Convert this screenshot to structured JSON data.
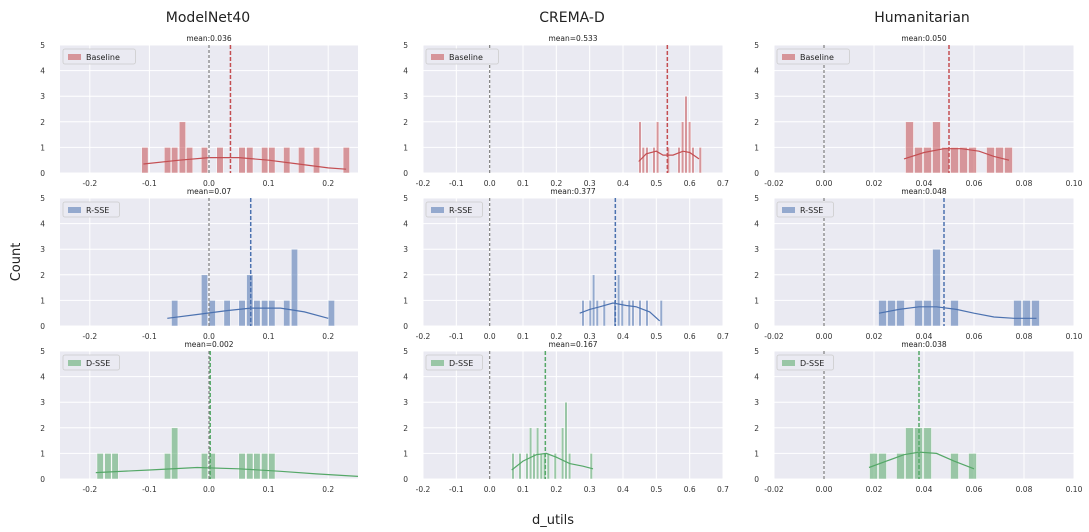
{
  "figure": {
    "ylabel": "Count",
    "xlabel": "d_utils",
    "column_titles": [
      "ModelNet40",
      "CREMA-D",
      "Humanitarian"
    ]
  },
  "chart_data": [
    {
      "type": "histogram",
      "dataset": "ModelNet40",
      "series": "Baseline",
      "row": 0,
      "col": 0,
      "color": "#c44e52",
      "mean_label": "mean:0.036",
      "mean": 0.036,
      "xlim": [
        -0.25,
        0.25
      ],
      "ylim": [
        0,
        5
      ],
      "xticks": [
        "-0.2",
        "-0.1",
        "0.0",
        "0.1",
        "0.2"
      ],
      "xtick_values": [
        -0.2,
        -0.1,
        0,
        0.1,
        0.2
      ],
      "yticks": [
        "0",
        "1",
        "2",
        "3",
        "4",
        "5"
      ],
      "bin_width": 0.0125,
      "bars": [
        [
          -0.113,
          1
        ],
        [
          -0.075,
          1
        ],
        [
          -0.063,
          1
        ],
        [
          -0.05,
          2
        ],
        [
          -0.038,
          1
        ],
        [
          -0.013,
          1
        ],
        [
          0.013,
          1
        ],
        [
          0.05,
          1
        ],
        [
          0.063,
          1
        ],
        [
          0.088,
          1
        ],
        [
          0.1,
          1
        ],
        [
          0.125,
          1
        ],
        [
          0.15,
          1
        ],
        [
          0.175,
          1
        ],
        [
          0.225,
          1
        ]
      ],
      "kde": [
        [
          -0.11,
          0.35
        ],
        [
          -0.05,
          0.5
        ],
        [
          0.0,
          0.6
        ],
        [
          0.05,
          0.6
        ],
        [
          0.1,
          0.5
        ],
        [
          0.15,
          0.35
        ],
        [
          0.2,
          0.2
        ],
        [
          0.23,
          0.15
        ]
      ]
    },
    {
      "type": "histogram",
      "dataset": "CREMA-D",
      "series": "Baseline",
      "row": 0,
      "col": 1,
      "color": "#c44e52",
      "mean_label": "mean=0.533",
      "mean": 0.533,
      "xlim": [
        -0.2,
        0.7
      ],
      "ylim": [
        0,
        5
      ],
      "xticks": [
        "-0.2",
        "-0.1",
        "0.0",
        "0.1",
        "0.2",
        "0.3",
        "0.4",
        "0.5",
        "0.6",
        "0.7"
      ],
      "xtick_values": [
        -0.2,
        -0.1,
        0,
        0.1,
        0.2,
        0.3,
        0.4,
        0.5,
        0.6,
        0.7
      ],
      "yticks": [
        "0",
        "1",
        "2",
        "3",
        "4",
        "5"
      ],
      "bin_width": 0.0107,
      "bars": [
        [
          0.447,
          2
        ],
        [
          0.457,
          1
        ],
        [
          0.468,
          1
        ],
        [
          0.489,
          1
        ],
        [
          0.5,
          2
        ],
        [
          0.532,
          1
        ],
        [
          0.564,
          1
        ],
        [
          0.575,
          2
        ],
        [
          0.585,
          3
        ],
        [
          0.596,
          2
        ],
        [
          0.606,
          1
        ],
        [
          0.628,
          1
        ]
      ],
      "kde": [
        [
          0.447,
          0.45
        ],
        [
          0.47,
          0.75
        ],
        [
          0.5,
          0.85
        ],
        [
          0.52,
          0.7
        ],
        [
          0.55,
          0.7
        ],
        [
          0.58,
          0.85
        ],
        [
          0.6,
          0.8
        ],
        [
          0.628,
          0.55
        ]
      ]
    },
    {
      "type": "histogram",
      "dataset": "Humanitarian",
      "series": "Baseline",
      "row": 0,
      "col": 2,
      "color": "#c44e52",
      "mean_label": "mean:0.050",
      "mean": 0.05,
      "xlim": [
        -0.02,
        0.1
      ],
      "ylim": [
        0,
        5
      ],
      "xticks": [
        "-0.02",
        "0.00",
        "0.02",
        "0.04",
        "0.06",
        "0.08",
        "0.10"
      ],
      "xtick_values": [
        -0.02,
        0,
        0.02,
        0.04,
        0.06,
        0.08,
        0.1
      ],
      "yticks": [
        "0",
        "1",
        "2",
        "3",
        "4",
        "5"
      ],
      "bin_width": 0.0036,
      "bars": [
        [
          0.0326,
          2
        ],
        [
          0.0362,
          1
        ],
        [
          0.0398,
          1
        ],
        [
          0.0434,
          2
        ],
        [
          0.047,
          1
        ],
        [
          0.0506,
          1
        ],
        [
          0.0542,
          1
        ],
        [
          0.0578,
          1
        ],
        [
          0.065,
          1
        ],
        [
          0.0686,
          1
        ],
        [
          0.0722,
          1
        ]
      ],
      "kde": [
        [
          0.032,
          0.55
        ],
        [
          0.04,
          0.8
        ],
        [
          0.048,
          0.95
        ],
        [
          0.055,
          0.95
        ],
        [
          0.062,
          0.85
        ],
        [
          0.068,
          0.65
        ],
        [
          0.074,
          0.5
        ]
      ]
    },
    {
      "type": "histogram",
      "dataset": "ModelNet40",
      "series": "R-SSE",
      "row": 1,
      "col": 0,
      "color": "#4c72b0",
      "mean_label": "mean=0.07",
      "mean": 0.07,
      "xlim": [
        -0.25,
        0.25
      ],
      "ylim": [
        0,
        5
      ],
      "xticks": [
        "-0.2",
        "-0.1",
        "0.0",
        "0.1",
        "0.2"
      ],
      "xtick_values": [
        -0.2,
        -0.1,
        0,
        0.1,
        0.2
      ],
      "yticks": [
        "0",
        "1",
        "2",
        "3",
        "4",
        "5"
      ],
      "bin_width": 0.0125,
      "bars": [
        [
          -0.063,
          1
        ],
        [
          -0.013,
          2
        ],
        [
          -0.0,
          1
        ],
        [
          0.025,
          1
        ],
        [
          0.05,
          1
        ],
        [
          0.063,
          2
        ],
        [
          0.075,
          1
        ],
        [
          0.088,
          1
        ],
        [
          0.1,
          1
        ],
        [
          0.125,
          1
        ],
        [
          0.138,
          3
        ],
        [
          0.2,
          1
        ]
      ],
      "kde": [
        [
          -0.07,
          0.3
        ],
        [
          -0.02,
          0.45
        ],
        [
          0.03,
          0.6
        ],
        [
          0.07,
          0.7
        ],
        [
          0.12,
          0.7
        ],
        [
          0.16,
          0.55
        ],
        [
          0.2,
          0.3
        ]
      ]
    },
    {
      "type": "histogram",
      "dataset": "CREMA-D",
      "series": "R-SSE",
      "row": 1,
      "col": 1,
      "color": "#4c72b0",
      "mean_label": "mean:0.377",
      "mean": 0.377,
      "xlim": [
        -0.2,
        0.7
      ],
      "ylim": [
        0,
        5
      ],
      "xticks": [
        "-0.2",
        "-0.1",
        "0.0",
        "0.1",
        "0.2",
        "0.3",
        "0.4",
        "0.5",
        "0.6",
        "0.7"
      ],
      "xtick_values": [
        -0.2,
        -0.1,
        0,
        0.1,
        0.2,
        0.3,
        0.4,
        0.5,
        0.6,
        0.7
      ],
      "yticks": [
        "0",
        "1",
        "2",
        "3",
        "4",
        "5"
      ],
      "bin_width": 0.0107,
      "bars": [
        [
          0.276,
          1
        ],
        [
          0.298,
          1
        ],
        [
          0.308,
          2
        ],
        [
          0.319,
          1
        ],
        [
          0.34,
          1
        ],
        [
          0.372,
          1
        ],
        [
          0.383,
          2
        ],
        [
          0.394,
          1
        ],
        [
          0.415,
          1
        ],
        [
          0.426,
          1
        ],
        [
          0.447,
          1
        ],
        [
          0.468,
          1
        ],
        [
          0.511,
          1
        ]
      ],
      "kde": [
        [
          0.27,
          0.5
        ],
        [
          0.3,
          0.65
        ],
        [
          0.33,
          0.75
        ],
        [
          0.37,
          0.9
        ],
        [
          0.41,
          0.8
        ],
        [
          0.44,
          0.75
        ],
        [
          0.48,
          0.55
        ],
        [
          0.51,
          0.2
        ]
      ]
    },
    {
      "type": "histogram",
      "dataset": "Humanitarian",
      "series": "R-SSE",
      "row": 1,
      "col": 2,
      "color": "#4c72b0",
      "mean_label": "mean:0.048",
      "mean": 0.048,
      "xlim": [
        -0.02,
        0.1
      ],
      "ylim": [
        0,
        5
      ],
      "xticks": [
        "-0.02",
        "0.00",
        "0.02",
        "0.04",
        "0.06",
        "0.08",
        "0.10"
      ],
      "xtick_values": [
        -0.02,
        0,
        0.02,
        0.04,
        0.06,
        0.08,
        0.1
      ],
      "yticks": [
        "0",
        "1",
        "2",
        "3",
        "4",
        "5"
      ],
      "bin_width": 0.0036,
      "bars": [
        [
          0.0218,
          1
        ],
        [
          0.0254,
          1
        ],
        [
          0.029,
          1
        ],
        [
          0.0362,
          1
        ],
        [
          0.0398,
          1
        ],
        [
          0.0434,
          3
        ],
        [
          0.0506,
          1
        ],
        [
          0.0758,
          1
        ],
        [
          0.0794,
          1
        ],
        [
          0.083,
          1
        ]
      ],
      "kde": [
        [
          0.022,
          0.5
        ],
        [
          0.03,
          0.65
        ],
        [
          0.038,
          0.75
        ],
        [
          0.045,
          0.75
        ],
        [
          0.053,
          0.65
        ],
        [
          0.06,
          0.5
        ],
        [
          0.068,
          0.35
        ],
        [
          0.076,
          0.3
        ],
        [
          0.085,
          0.3
        ]
      ]
    },
    {
      "type": "histogram",
      "dataset": "ModelNet40",
      "series": "D-SSE",
      "row": 2,
      "col": 0,
      "color": "#55a868",
      "mean_label": "mean=0.002",
      "mean": 0.002,
      "xlim": [
        -0.25,
        0.25
      ],
      "ylim": [
        0,
        5
      ],
      "xticks": [
        "-0.2",
        "-0.1",
        "0.0",
        "0.1",
        "0.2"
      ],
      "xtick_values": [
        -0.2,
        -0.1,
        0,
        0.1,
        0.2
      ],
      "yticks": [
        "0",
        "1",
        "2",
        "3",
        "4",
        "5"
      ],
      "bin_width": 0.0125,
      "bars": [
        [
          -0.188,
          1
        ],
        [
          -0.175,
          1
        ],
        [
          -0.163,
          1
        ],
        [
          -0.075,
          1
        ],
        [
          -0.063,
          2
        ],
        [
          -0.013,
          1
        ],
        [
          0.0,
          1
        ],
        [
          0.05,
          1
        ],
        [
          0.063,
          1
        ],
        [
          0.075,
          1
        ],
        [
          0.088,
          1
        ],
        [
          0.1,
          1
        ]
      ],
      "kde": [
        [
          -0.19,
          0.25
        ],
        [
          -0.1,
          0.35
        ],
        [
          -0.02,
          0.45
        ],
        [
          0.05,
          0.4
        ],
        [
          0.12,
          0.3
        ],
        [
          0.18,
          0.2
        ],
        [
          0.25,
          0.1
        ]
      ]
    },
    {
      "type": "histogram",
      "dataset": "CREMA-D",
      "series": "D-SSE",
      "row": 2,
      "col": 1,
      "color": "#55a868",
      "mean_label": "mean=0.167",
      "mean": 0.167,
      "xlim": [
        -0.2,
        0.7
      ],
      "ylim": [
        0,
        5
      ],
      "xticks": [
        "-0.2",
        "-0.1",
        "0.0",
        "0.1",
        "0.2",
        "0.3",
        "0.4",
        "0.5",
        "0.6",
        "0.7"
      ],
      "xtick_values": [
        -0.2,
        -0.1,
        0,
        0.1,
        0.2,
        0.3,
        0.4,
        0.5,
        0.6,
        0.7
      ],
      "yticks": [
        "0",
        "1",
        "2",
        "3",
        "4",
        "5"
      ],
      "bin_width": 0.0107,
      "bars": [
        [
          0.066,
          1
        ],
        [
          0.087,
          1
        ],
        [
          0.108,
          1
        ],
        [
          0.119,
          2
        ],
        [
          0.129,
          1
        ],
        [
          0.14,
          2
        ],
        [
          0.151,
          1
        ],
        [
          0.161,
          1
        ],
        [
          0.172,
          1
        ],
        [
          0.193,
          1
        ],
        [
          0.215,
          2
        ],
        [
          0.225,
          3
        ],
        [
          0.236,
          1
        ],
        [
          0.301,
          1
        ]
      ],
      "kde": [
        [
          0.066,
          0.35
        ],
        [
          0.1,
          0.7
        ],
        [
          0.14,
          0.95
        ],
        [
          0.17,
          1.0
        ],
        [
          0.2,
          0.85
        ],
        [
          0.24,
          0.6
        ],
        [
          0.28,
          0.5
        ],
        [
          0.31,
          0.4
        ]
      ]
    },
    {
      "type": "histogram",
      "dataset": "Humanitarian",
      "series": "D-SSE",
      "row": 2,
      "col": 2,
      "color": "#55a868",
      "mean_label": "mean:0.038",
      "mean": 0.038,
      "xlim": [
        -0.02,
        0.1
      ],
      "ylim": [
        0,
        5
      ],
      "xticks": [
        "-0.02",
        "0.00",
        "0.02",
        "0.04",
        "0.06",
        "0.08",
        "0.10"
      ],
      "xtick_values": [
        -0.02,
        0,
        0.02,
        0.04,
        0.06,
        0.08,
        0.1
      ],
      "yticks": [
        "0",
        "1",
        "2",
        "3",
        "4",
        "5"
      ],
      "bin_width": 0.0036,
      "bars": [
        [
          0.0182,
          1
        ],
        [
          0.0218,
          1
        ],
        [
          0.029,
          1
        ],
        [
          0.0326,
          2
        ],
        [
          0.0362,
          2
        ],
        [
          0.0398,
          2
        ],
        [
          0.0506,
          1
        ],
        [
          0.0578,
          1
        ]
      ],
      "kde": [
        [
          0.018,
          0.45
        ],
        [
          0.025,
          0.7
        ],
        [
          0.032,
          0.95
        ],
        [
          0.038,
          1.05
        ],
        [
          0.045,
          1.0
        ],
        [
          0.052,
          0.7
        ],
        [
          0.06,
          0.4
        ]
      ]
    }
  ]
}
